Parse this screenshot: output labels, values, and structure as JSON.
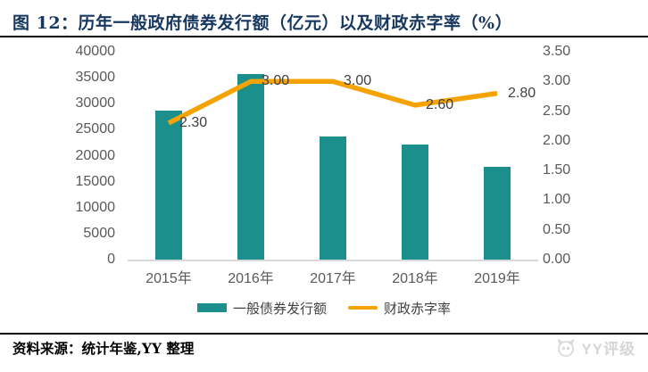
{
  "title": "图 12：历年一般政府债券发行额（亿元）以及财政赤字率（%）",
  "source_note": "资料来源：统计年鉴,YY 整理",
  "watermark": "YY评级",
  "colors": {
    "bar": "#1A8F8C",
    "line": "#F5A302",
    "title": "#17375E",
    "axis_text": "#595959",
    "label_text": "#404040",
    "axis_line": "#D9D9D9",
    "divider": "#000000",
    "watermark": "#D6D6D6"
  },
  "chart_data": {
    "type": "bar",
    "subtype": "bar+line combo, dual axis",
    "title": "历年一般政府债券发行额（亿元）以及财政赤字率（%）",
    "categories": [
      "2015年",
      "2016年",
      "2017年",
      "2018年",
      "2019年"
    ],
    "series": [
      {
        "name": "一般债券发行额",
        "type": "bar",
        "axis": "left",
        "values": [
          28700,
          35700,
          23700,
          22200,
          17800
        ]
      },
      {
        "name": "财政赤字率",
        "type": "line",
        "axis": "right",
        "values": [
          2.3,
          3.0,
          3.0,
          2.6,
          2.8
        ],
        "labels": [
          "2.30",
          "3.00",
          "3.00",
          "2.60",
          "2.80"
        ]
      }
    ],
    "left_axis": {
      "min": 0,
      "max": 40000,
      "ticks": [
        "40000",
        "35000",
        "30000",
        "25000",
        "20000",
        "15000",
        "10000",
        "5000",
        "0"
      ]
    },
    "right_axis": {
      "min": 0,
      "max": 3.5,
      "ticks": [
        "3.50",
        "3.00",
        "2.50",
        "2.00",
        "1.50",
        "1.00",
        "0.50",
        "0.00"
      ]
    },
    "grid": false,
    "legend_position": "bottom",
    "xlabel": "",
    "ylabel": ""
  }
}
